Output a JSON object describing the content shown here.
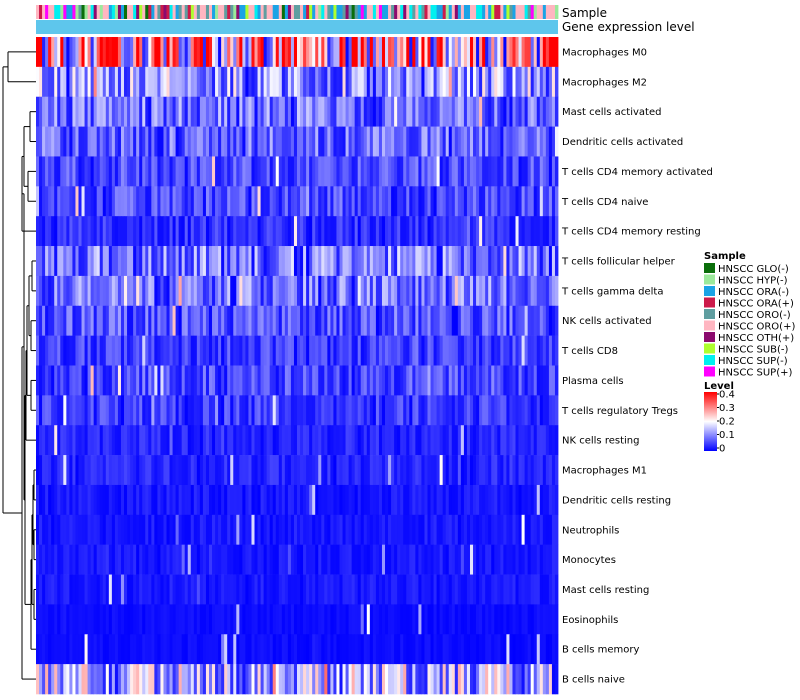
{
  "chart_data": {
    "type": "heatmap",
    "annotation_tracks": [
      "Sample",
      "Gene expression level"
    ],
    "rows": [
      {
        "label": "Macrophages M0",
        "mean": 0.3
      },
      {
        "label": "Macrophages M2",
        "mean": 0.13
      },
      {
        "label": "Mast cells activated",
        "mean": 0.09
      },
      {
        "label": "Dendritic cells activated",
        "mean": 0.08
      },
      {
        "label": "T cells CD4 memory activated",
        "mean": 0.06
      },
      {
        "label": "T cells CD4 naive",
        "mean": 0.06
      },
      {
        "label": "T cells CD4 memory resting",
        "mean": 0.04
      },
      {
        "label": "T cells follicular helper",
        "mean": 0.1
      },
      {
        "label": "T cells gamma delta",
        "mean": 0.09
      },
      {
        "label": "NK cells activated",
        "mean": 0.07
      },
      {
        "label": "T cells CD8",
        "mean": 0.05
      },
      {
        "label": "Plasma cells",
        "mean": 0.06
      },
      {
        "label": "T cells regulatory  Tregs",
        "mean": 0.05
      },
      {
        "label": "NK cells resting",
        "mean": 0.03
      },
      {
        "label": "Macrophages M1",
        "mean": 0.03
      },
      {
        "label": "Dendritic cells resting",
        "mean": 0.02
      },
      {
        "label": "Neutrophils",
        "mean": 0.02
      },
      {
        "label": "Monocytes",
        "mean": 0.02
      },
      {
        "label": "Mast cells resting",
        "mean": 0.02
      },
      {
        "label": "Eosinophils",
        "mean": 0.01
      },
      {
        "label": "B cells memory",
        "mean": 0.01
      },
      {
        "label": "B cells naive",
        "mean": 0.15
      }
    ],
    "n_samples": 172,
    "sample_legend": {
      "title": "Sample",
      "items": [
        {
          "label": "HNSCC GLO(-)",
          "color": "#0a6e0a"
        },
        {
          "label": "HNSCC HYP(-)",
          "color": "#9be99b"
        },
        {
          "label": "HNSCC ORA(-)",
          "color": "#1aa3e6"
        },
        {
          "label": "HNSCC ORA(+)",
          "color": "#cc1a4a"
        },
        {
          "label": "HNSCC ORO(-)",
          "color": "#5f9ea0"
        },
        {
          "label": "HNSCC ORO(+)",
          "color": "#ffb6c1"
        },
        {
          "label": "HNSCC OTH(+)",
          "color": "#8b0a6e"
        },
        {
          "label": "HNSCC SUB(-)",
          "color": "#adff2f"
        },
        {
          "label": "HNSCC SUP(-)",
          "color": "#00f0f0"
        },
        {
          "label": "HNSCC SUP(+)",
          "color": "#ff00ff"
        }
      ]
    },
    "level_legend": {
      "title": "Level",
      "ticks": [
        "0.4",
        "0.3",
        "0.2",
        "0.1",
        "0"
      ],
      "range": [
        0,
        0.4
      ],
      "colors": {
        "low": "#0000ff",
        "mid": "#ffffff",
        "high": "#ff0000"
      }
    },
    "expression_track_color": "#5ec6ec"
  }
}
